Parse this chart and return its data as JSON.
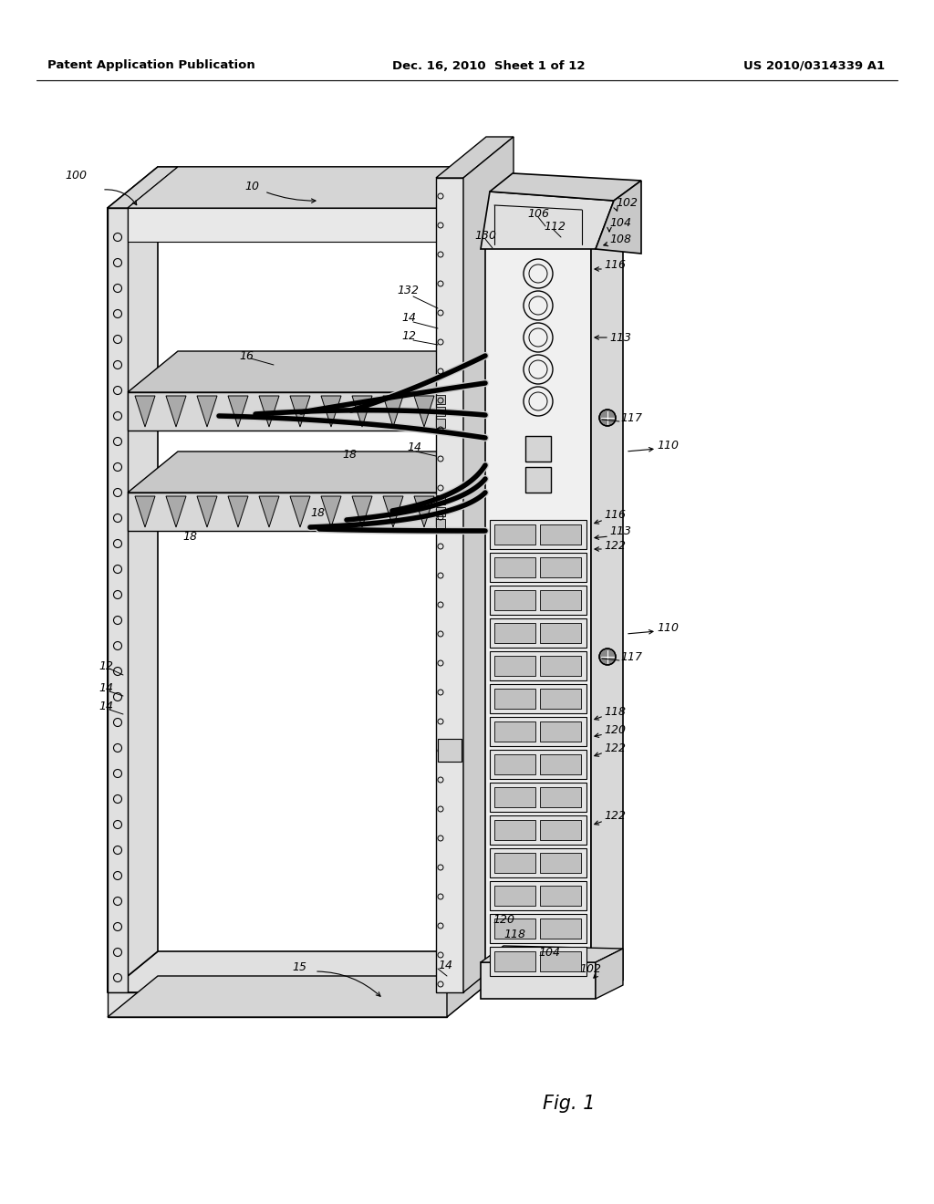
{
  "bg_color": "#ffffff",
  "header_left": "Patent Application Publication",
  "header_mid": "Dec. 16, 2010  Sheet 1 of 12",
  "header_right": "US 2010/0314339 A1",
  "fig_label": "Fig. 1"
}
